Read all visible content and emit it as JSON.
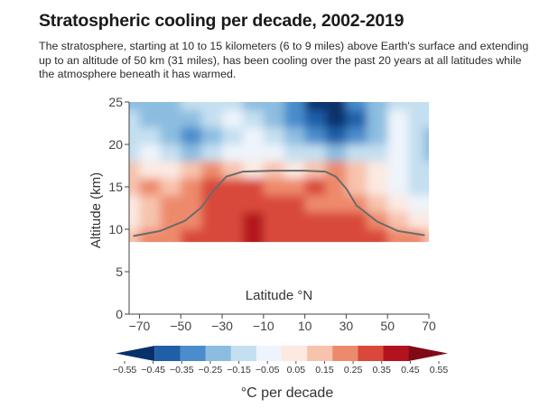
{
  "title": "Stratospheric cooling per decade, 2002-2019",
  "subtitle": "The stratosphere, starting at 10 to 15 kilometers (6 to 9 miles) above Earth's surface and extending up to an altitude of 50 km (31 miles), has been cooling over the past 20 years at all latitudes while the atmosphere beneath it has warmed.",
  "chart_data": {
    "type": "heatmap",
    "xlabel": "Latitude °N",
    "ylabel": "Altitude (km)",
    "xlim": [
      -75,
      70
    ],
    "ylim": [
      0,
      25
    ],
    "x_ticks": [
      "−70",
      "−50",
      "−30",
      "−10",
      "10",
      "30",
      "50",
      "70"
    ],
    "x_tick_values": [
      -70,
      -50,
      -30,
      -10,
      10,
      30,
      50,
      70
    ],
    "y_ticks": [
      "0",
      "5",
      "10",
      "15",
      "20",
      "25"
    ],
    "y_tick_values": [
      0,
      5,
      10,
      15,
      20,
      25
    ],
    "data_altitude_range": [
      8.5,
      25
    ],
    "colorbar": {
      "label": "°C per decade",
      "ticks": [
        "−0.55",
        "−0.45",
        "−0.35",
        "−0.25",
        "−0.15",
        "−0.05",
        "0.05",
        "0.15",
        "0.25",
        "0.35",
        "0.45",
        "0.55"
      ],
      "colors": [
        "#08306b",
        "#1f5fa8",
        "#4a8ccc",
        "#8cbde0",
        "#c4dff0",
        "#eef4fb",
        "#fbe9e2",
        "#f7c3ad",
        "#ee8a6c",
        "#d9483b",
        "#b3131f",
        "#7f0a16"
      ]
    },
    "heatmap_x": [
      -75,
      -65,
      -55,
      -45,
      -35,
      -25,
      -15,
      -5,
      5,
      15,
      25,
      35,
      45,
      55,
      65,
      70
    ],
    "heatmap_y": [
      25,
      23,
      21,
      19,
      17,
      15,
      13,
      11,
      9
    ],
    "heatmap_values": [
      [
        -0.2,
        -0.25,
        -0.2,
        -0.15,
        -0.1,
        -0.15,
        -0.2,
        -0.25,
        -0.35,
        -0.5,
        -0.5,
        -0.35,
        -0.2,
        -0.1,
        -0.15,
        -0.15
      ],
      [
        -0.15,
        -0.2,
        -0.25,
        -0.2,
        -0.1,
        -0.05,
        -0.15,
        -0.2,
        -0.3,
        -0.45,
        -0.55,
        -0.4,
        -0.25,
        -0.05,
        -0.1,
        -0.15
      ],
      [
        -0.15,
        -0.1,
        -0.2,
        -0.3,
        -0.2,
        -0.1,
        -0.05,
        -0.1,
        -0.2,
        -0.3,
        -0.45,
        -0.35,
        -0.2,
        -0.05,
        -0.15,
        -0.25
      ],
      [
        -0.1,
        -0.05,
        -0.1,
        -0.2,
        -0.15,
        -0.05,
        0.0,
        -0.05,
        -0.1,
        -0.15,
        -0.2,
        -0.15,
        -0.1,
        -0.05,
        -0.1,
        -0.2
      ],
      [
        0.15,
        0.1,
        0.05,
        0.15,
        0.3,
        0.2,
        0.1,
        0.15,
        0.1,
        0.15,
        0.25,
        0.2,
        0.05,
        -0.05,
        -0.1,
        -0.15
      ],
      [
        0.2,
        0.25,
        0.2,
        0.3,
        0.35,
        0.35,
        0.35,
        0.3,
        0.3,
        0.35,
        0.25,
        0.15,
        0.05,
        -0.05,
        -0.1,
        -0.15
      ],
      [
        0.1,
        0.2,
        0.25,
        0.3,
        0.35,
        0.4,
        0.4,
        0.35,
        0.35,
        0.3,
        0.3,
        0.25,
        0.15,
        0.05,
        0.0,
        -0.05
      ],
      [
        0.05,
        0.15,
        0.25,
        0.3,
        0.35,
        0.4,
        0.45,
        0.4,
        0.4,
        0.35,
        0.35,
        0.4,
        0.3,
        0.2,
        0.1,
        0.05
      ],
      [
        0.15,
        0.25,
        0.3,
        0.35,
        0.35,
        0.4,
        0.45,
        0.4,
        0.4,
        0.4,
        0.4,
        0.4,
        0.35,
        0.3,
        0.25,
        0.2
      ]
    ],
    "tropopause_line": {
      "color": "#6b6b6b",
      "x": [
        -73,
        -60,
        -48,
        -40,
        -33,
        -28,
        -20,
        -5,
        10,
        20,
        25,
        30,
        35,
        45,
        55,
        68
      ],
      "y": [
        9.2,
        9.8,
        11.0,
        12.6,
        14.9,
        16.2,
        16.8,
        16.9,
        16.9,
        16.8,
        16.2,
        14.8,
        12.8,
        10.9,
        9.8,
        9.3
      ]
    }
  }
}
